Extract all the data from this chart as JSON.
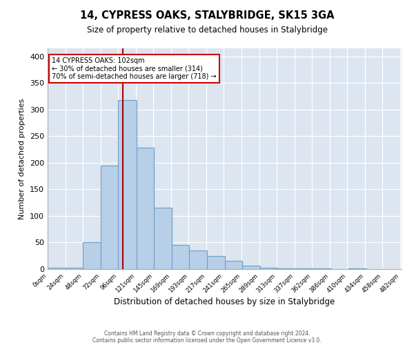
{
  "title": "14, CYPRESS OAKS, STALYBRIDGE, SK15 3GA",
  "subtitle": "Size of property relative to detached houses in Stalybridge",
  "xlabel": "Distribution of detached houses by size in Stalybridge",
  "ylabel": "Number of detached properties",
  "footer_line1": "Contains HM Land Registry data © Crown copyright and database right 2024.",
  "footer_line2": "Contains public sector information licensed under the Open Government Licence v3.0.",
  "bar_counts": [
    2,
    2,
    51,
    194,
    318,
    228,
    115,
    46,
    35,
    24,
    15,
    6,
    2,
    1,
    1,
    1,
    0,
    1
  ],
  "bin_edges": [
    0,
    24,
    48,
    72,
    96,
    121,
    145,
    169,
    193,
    217,
    241,
    265,
    289,
    313,
    337,
    362,
    386,
    410,
    434
  ],
  "tick_labels": [
    "0sqm",
    "24sqm",
    "48sqm",
    "72sqm",
    "96sqm",
    "121sqm",
    "145sqm",
    "169sqm",
    "193sqm",
    "217sqm",
    "241sqm",
    "265sqm",
    "289sqm",
    "313sqm",
    "337sqm",
    "362sqm",
    "386sqm",
    "410sqm",
    "434sqm",
    "458sqm",
    "482sqm"
  ],
  "bar_color": "#b8cfe8",
  "bar_edge_color": "#6b9ec8",
  "bg_color": "#dce5f0",
  "vline_x": 102,
  "vline_color": "#aa0000",
  "annotation_title": "14 CYPRESS OAKS: 102sqm",
  "annotation_line2": "← 30% of detached houses are smaller (314)",
  "annotation_line3": "70% of semi-detached houses are larger (718) →",
  "annotation_box_edgecolor": "#cc0000",
  "ylim": [
    0,
    415
  ],
  "yticks": [
    0,
    50,
    100,
    150,
    200,
    250,
    300,
    350,
    400
  ],
  "xlim": [
    0,
    482
  ]
}
